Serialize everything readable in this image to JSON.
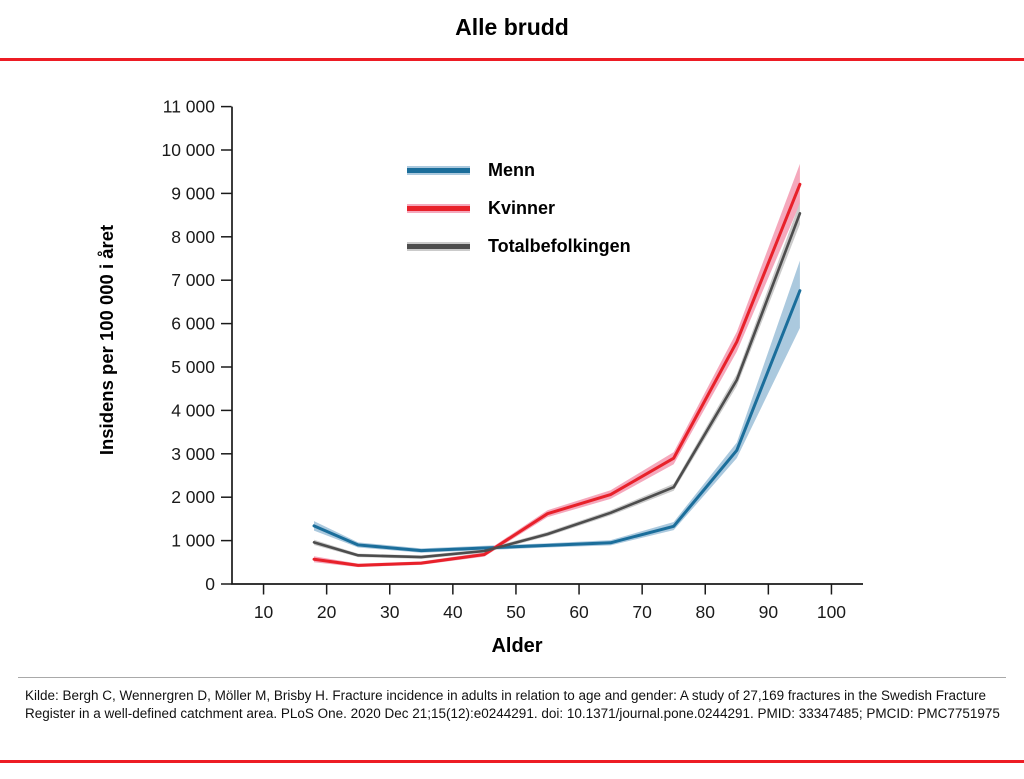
{
  "header": {
    "title": "Alle brudd"
  },
  "colors": {
    "accent_rule": "#ed1c24",
    "axis": "#1a1a1a",
    "menn_line": "#1b6e9b",
    "kvinner_line": "#e8212a",
    "total_line": "#4d4d4d",
    "menn_band": "#abc9de",
    "kvinner_band": "#f5a8bc",
    "total_band": "#cbcbcb"
  },
  "chart_data": {
    "type": "line",
    "title": "Alle brudd",
    "xlabel": "Alder",
    "ylabel": "Insidens per 100 000 i året",
    "xlim": [
      5,
      105
    ],
    "ylim": [
      0,
      11000
    ],
    "grid": false,
    "legend_position": "upper-left-inside",
    "x_ticks": [
      10,
      20,
      30,
      40,
      50,
      60,
      70,
      80,
      90,
      100
    ],
    "y_ticks": [
      0,
      1000,
      2000,
      3000,
      4000,
      5000,
      6000,
      7000,
      8000,
      9000,
      10000,
      11000
    ],
    "y_tick_labels": [
      "0",
      "1 000",
      "2 000",
      "3 000",
      "4 000",
      "5 000",
      "6 000",
      "7 000",
      "8 000",
      "9 000",
      "10 000",
      "11 000"
    ],
    "x": [
      18,
      25,
      35,
      45,
      55,
      65,
      75,
      85,
      95
    ],
    "series": [
      {
        "name": "Menn",
        "color": "#1b6e9b",
        "band_color": "#abc9de",
        "values": [
          1340,
          900,
          770,
          830,
          890,
          950,
          1330,
          3080,
          6760
        ],
        "ci_low": [
          1230,
          840,
          720,
          780,
          840,
          890,
          1240,
          2900,
          5900
        ],
        "ci_high": [
          1450,
          960,
          820,
          880,
          940,
          1010,
          1430,
          3260,
          7450
        ]
      },
      {
        "name": "Kvinner",
        "color": "#e8212a",
        "band_color": "#f5a8bc",
        "values": [
          570,
          430,
          480,
          680,
          1620,
          2060,
          2900,
          5580,
          9210
        ],
        "ci_low": [
          500,
          390,
          440,
          630,
          1540,
          1960,
          2760,
          5350,
          8760
        ],
        "ci_high": [
          640,
          470,
          520,
          730,
          1700,
          2160,
          3040,
          5810,
          9680
        ]
      },
      {
        "name": "Totalbefolkingen",
        "color": "#4d4d4d",
        "band_color": "#cbcbcb",
        "values": [
          960,
          660,
          620,
          760,
          1150,
          1640,
          2230,
          4700,
          8540
        ],
        "ci_low": [
          900,
          620,
          580,
          720,
          1100,
          1580,
          2150,
          4560,
          8290
        ],
        "ci_high": [
          1020,
          700,
          660,
          800,
          1200,
          1700,
          2310,
          4840,
          8790
        ]
      }
    ]
  },
  "footer": {
    "source": "Kilde: Bergh C, Wennergren D, Möller M, Brisby H. Fracture incidence in adults in relation to age and gender: A study of 27,169 fractures in the Swedish Fracture Register in a well-defined catchment area. PLoS One. 2020 Dec 21;15(12):e0244291. doi: 10.1371/journal.pone.0244291. PMID: 33347485; PMCID: PMC7751975"
  }
}
